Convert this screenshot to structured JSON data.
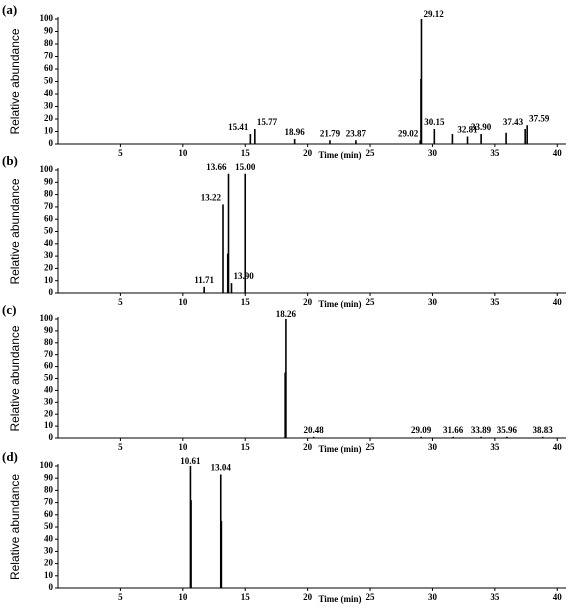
{
  "chart_data": [
    {
      "type": "chromatogram",
      "panel_label": "(a)",
      "y_label": "Relative abundance",
      "x_label": "Time (min)",
      "xlim": [
        0,
        40.7
      ],
      "ylim": [
        0,
        100
      ],
      "xticks": [
        5,
        10,
        15,
        20,
        25,
        30,
        35,
        40
      ],
      "yticks": [
        0,
        10,
        20,
        30,
        40,
        50,
        60,
        70,
        80,
        90,
        100
      ],
      "color": "#000000",
      "x": [
        15.41,
        15.77,
        18.96,
        21.79,
        23.87,
        29.02,
        29.08,
        29.12,
        30.15,
        31.6,
        32.81,
        33.9,
        35.9,
        37.43,
        37.59
      ],
      "values": [
        8,
        12,
        4,
        3,
        3,
        3,
        52,
        100,
        12,
        8,
        6,
        8,
        9,
        12,
        15
      ],
      "x_labels": [
        "15.41",
        "15.77",
        "18.96",
        "21.79",
        "23.87",
        "29.02",
        null,
        "29.12",
        "30.15",
        null,
        "32.81",
        "33.90",
        null,
        "37.43",
        "37.59"
      ]
    },
    {
      "type": "chromatogram",
      "panel_label": "(b)",
      "y_label": "Relative abundance",
      "x_label": "Time (min)",
      "xlim": [
        0,
        40.7
      ],
      "ylim": [
        0,
        100
      ],
      "xticks": [
        5,
        10,
        15,
        20,
        25,
        30,
        35,
        40
      ],
      "yticks": [
        0,
        10,
        20,
        30,
        40,
        50,
        60,
        70,
        80,
        90,
        100
      ],
      "color": "#000000",
      "x": [
        11.71,
        13.22,
        13.6,
        13.66,
        13.9,
        15.0
      ],
      "values": [
        5,
        72,
        32,
        97,
        8,
        97
      ],
      "x_labels": [
        "11.71",
        "13.22",
        null,
        "13.66",
        "13.90",
        "15.00"
      ]
    },
    {
      "type": "chromatogram",
      "panel_label": "(c)",
      "y_label": "Relative abundance",
      "x_label": "Time (min)",
      "xlim": [
        0,
        40.7
      ],
      "ylim": [
        0,
        100
      ],
      "xticks": [
        5,
        10,
        15,
        20,
        25,
        30,
        35,
        40
      ],
      "yticks": [
        0,
        10,
        20,
        30,
        40,
        50,
        60,
        70,
        80,
        90,
        100
      ],
      "color": "#000000",
      "x": [
        18.2,
        18.26,
        20.48,
        29.09,
        31.66,
        33.89,
        35.96,
        38.83
      ],
      "values": [
        55,
        100,
        1,
        1,
        1,
        1,
        1,
        1
      ],
      "x_labels": [
        null,
        "18.26",
        "20.48",
        "29.09",
        "31.66",
        "33.89",
        "35.96",
        "38.83"
      ]
    },
    {
      "type": "chromatogram",
      "panel_label": "(d)",
      "y_label": "Relative abundance",
      "x_label": "Time (min)",
      "xlim": [
        0,
        40.7
      ],
      "ylim": [
        0,
        100
      ],
      "xticks": [
        5,
        10,
        15,
        20,
        25,
        30,
        35,
        40
      ],
      "yticks": [
        0,
        10,
        20,
        30,
        40,
        50,
        60,
        70,
        80,
        90,
        100
      ],
      "color": "#000000",
      "x": [
        10.61,
        10.66,
        13.04,
        13.09
      ],
      "values": [
        100,
        72,
        93,
        55
      ],
      "x_labels": [
        "10.61",
        null,
        "13.04",
        null
      ]
    }
  ]
}
